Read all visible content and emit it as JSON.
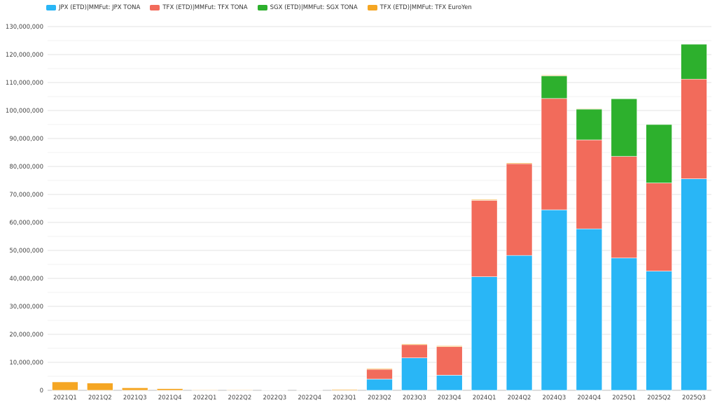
{
  "chart_data": {
    "type": "bar",
    "stacked": true,
    "title": "",
    "xlabel": "",
    "ylabel": "",
    "ylim": [
      0,
      130000000
    ],
    "grid": true,
    "legend_position": "top-left",
    "yticks": [
      "0",
      "10,000,000",
      "20,000,000",
      "30,000,000",
      "40,000,000",
      "50,000,000",
      "60,000,000",
      "70,000,000",
      "80,000,000",
      "90,000,000",
      "100,000,000",
      "110,000,000",
      "120,000,000",
      "130,000,000"
    ],
    "categories": [
      "2021Q1",
      "2021Q2",
      "2021Q3",
      "2021Q4",
      "2022Q1",
      "2022Q2",
      "2022Q3",
      "2022Q4",
      "2023Q1",
      "2023Q2",
      "2023Q3",
      "2023Q4",
      "2024Q1",
      "2024Q2",
      "2024Q3",
      "2024Q4",
      "2025Q1",
      "2025Q2",
      "2025Q3"
    ],
    "series": [
      {
        "name": "JPX (ETD)|MMFut: JPX TONA",
        "color": "#29b6f6",
        "values": [
          0,
          0,
          0,
          0,
          0,
          0,
          0,
          0,
          0,
          4000000,
          11600000,
          5400000,
          40600000,
          48200000,
          64500000,
          57700000,
          47300000,
          42600000,
          75600000
        ]
      },
      {
        "name": "TFX (ETD)|MMFut: TFX TONA",
        "color": "#f26b5b",
        "values": [
          0,
          0,
          0,
          0,
          0,
          0,
          0,
          0,
          0,
          3500000,
          4700000,
          10200000,
          27300000,
          32800000,
          39800000,
          31800000,
          36300000,
          31500000,
          35600000
        ]
      },
      {
        "name": "SGX (ETD)|MMFut: SGX TONA",
        "color": "#2db02d",
        "values": [
          0,
          0,
          0,
          0,
          0,
          0,
          0,
          0,
          0,
          0,
          0,
          0,
          0,
          0,
          8100000,
          11000000,
          20600000,
          20900000,
          12500000
        ]
      },
      {
        "name": "TFX (ETD)|MMFut: TFX EuroYen",
        "color": "#f5a623",
        "values": [
          3000000,
          2600000,
          900000,
          600000,
          200000,
          200000,
          150000,
          150000,
          300000,
          300000,
          300000,
          300000,
          300000,
          300000,
          250000,
          200000,
          0,
          0,
          0
        ]
      }
    ]
  }
}
